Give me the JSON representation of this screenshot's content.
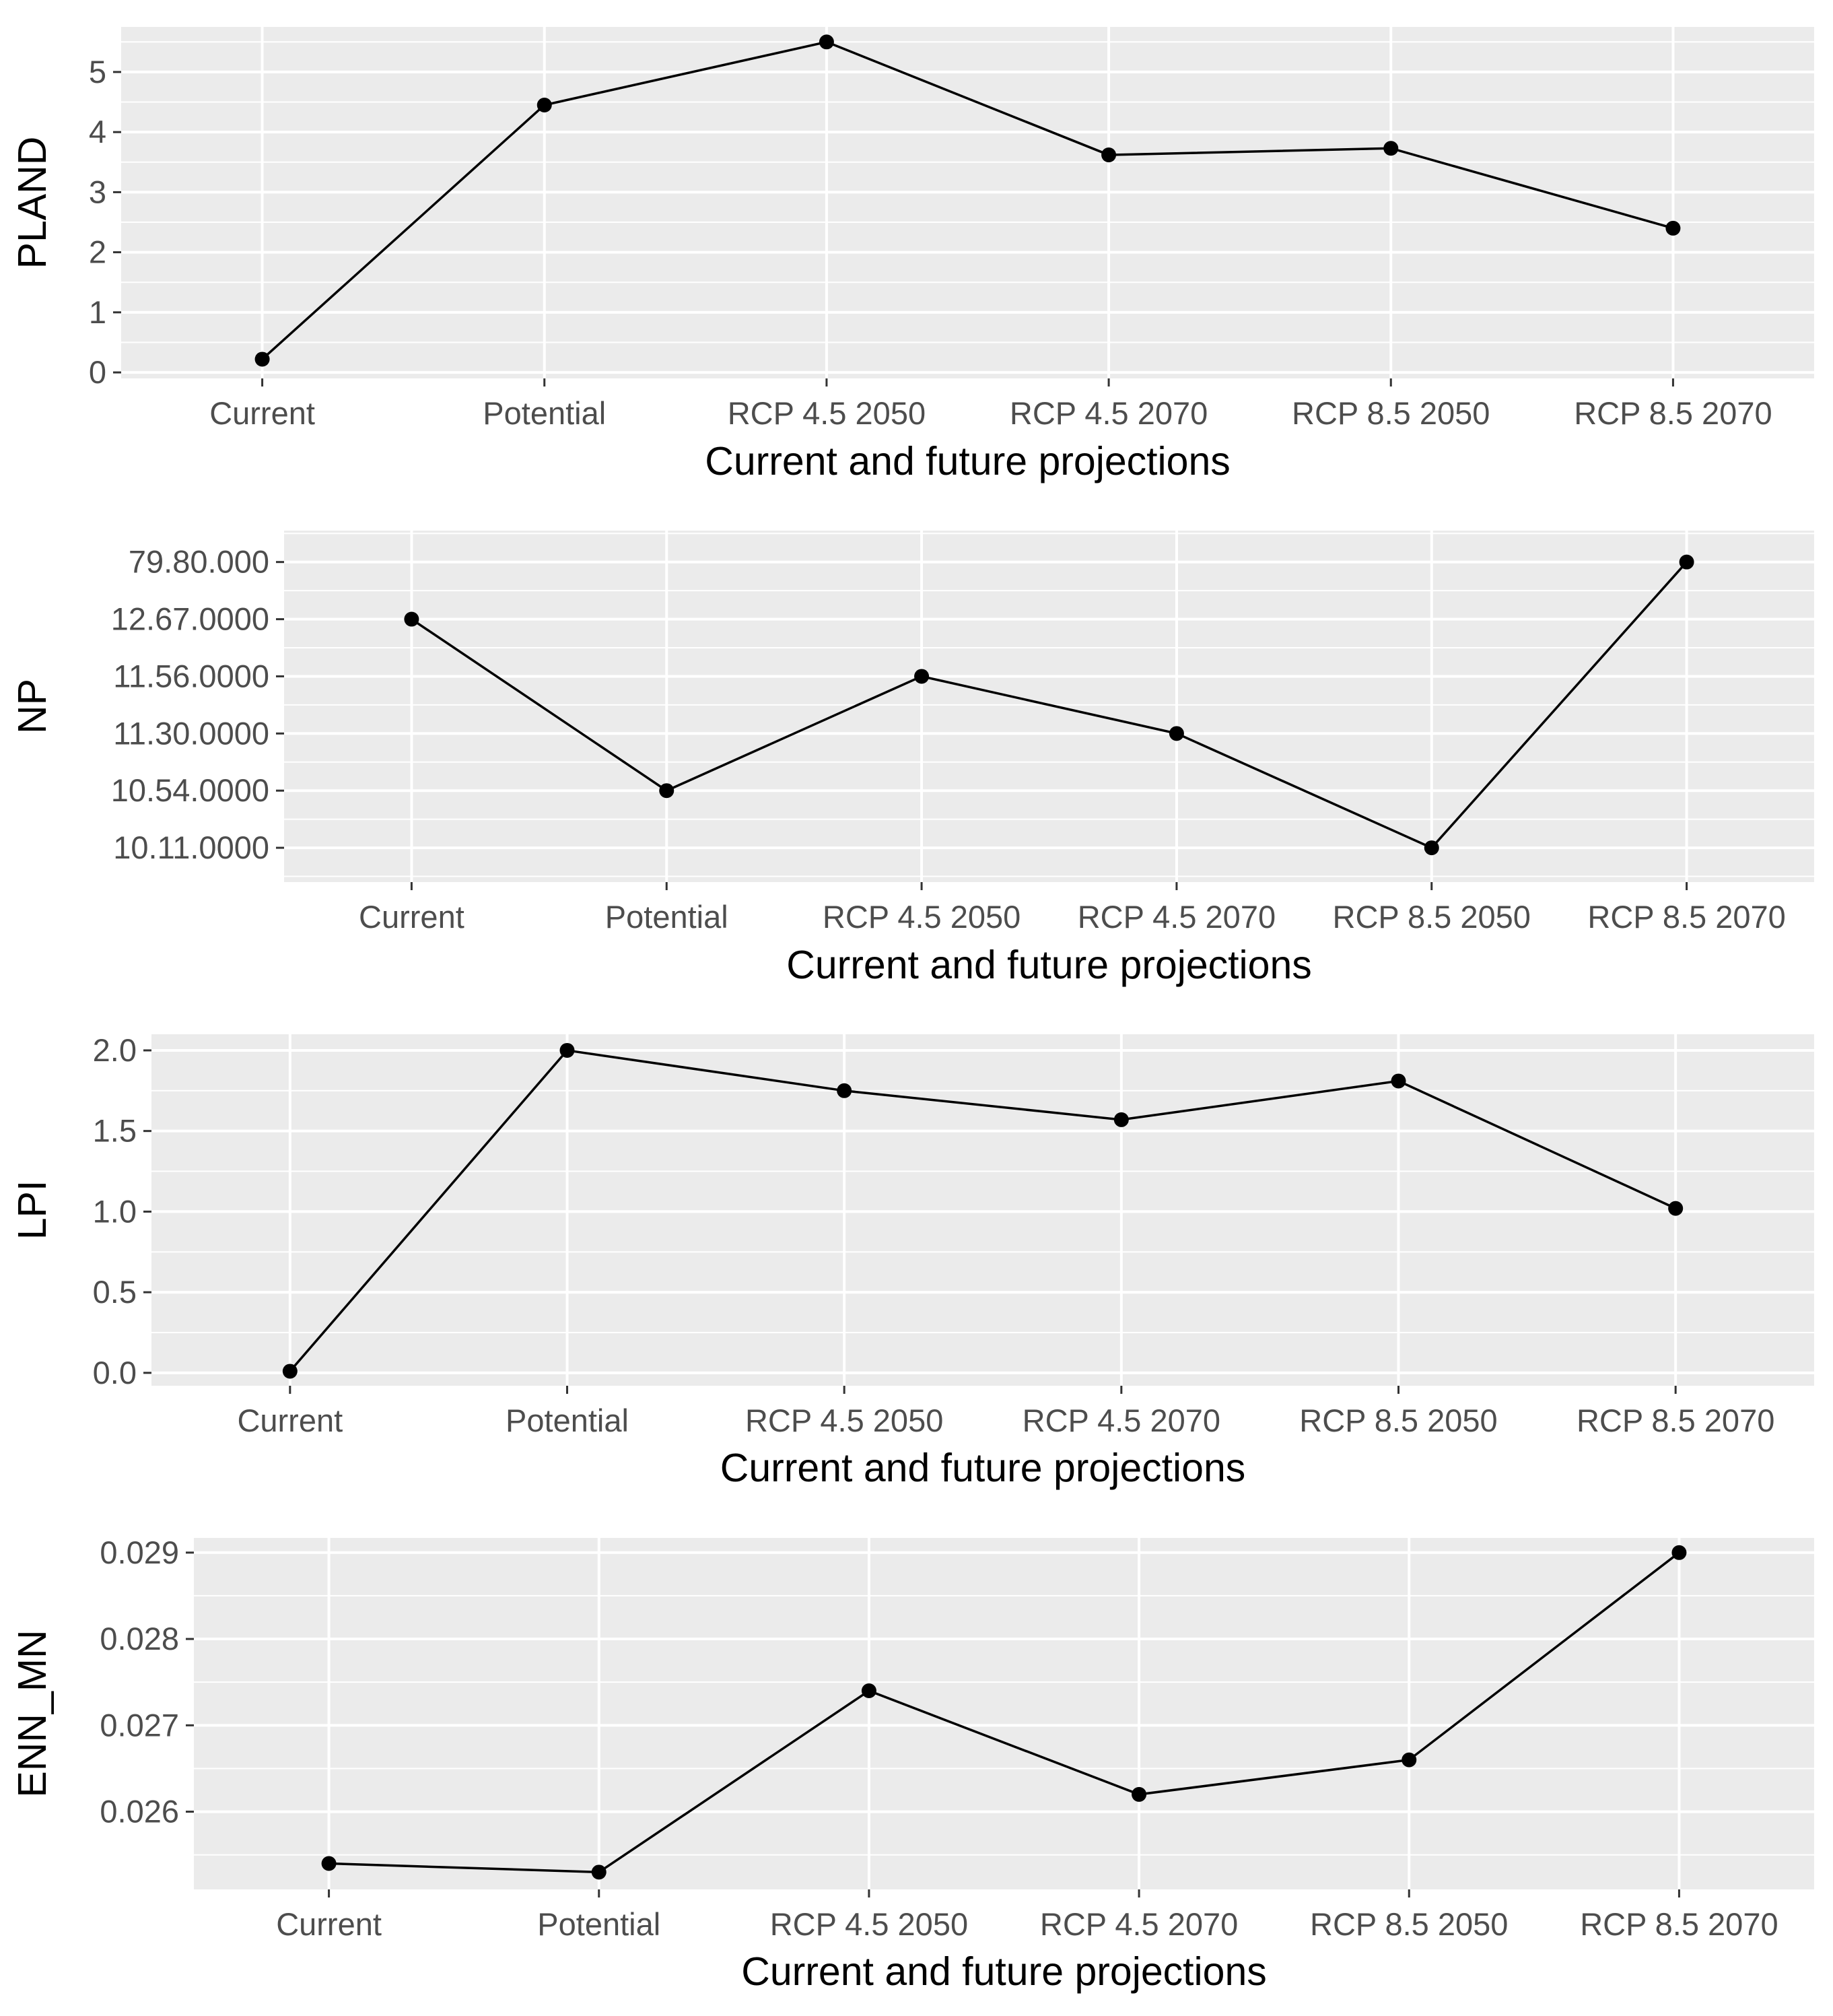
{
  "colors": {
    "panel_background": "#ebebeb",
    "grid": "#ffffff",
    "tick_text": "#4d4d4d",
    "series": "#000000"
  },
  "chart_data": [
    {
      "type": "line",
      "title": "",
      "xlabel": "Current and future projections",
      "ylabel": "PLAND",
      "categories": [
        "Current",
        "Potential",
        "RCP 4.5 2050",
        "RCP 4.5 2070",
        "RCP 8.5 2050",
        "RCP 8.5 2070"
      ],
      "values": [
        0.22,
        4.45,
        5.5,
        3.62,
        3.73,
        2.4
      ],
      "ylim": [
        -0.1,
        5.75
      ],
      "yticks": [
        0,
        1,
        2,
        3,
        4,
        5
      ],
      "ytick_labels": [
        "0",
        "1",
        "2",
        "3",
        "4",
        "5"
      ],
      "grid": true,
      "legend": "none"
    },
    {
      "type": "line",
      "title": "",
      "xlabel": "Current and future projections",
      "ylabel": "NP",
      "categories": [
        "Current",
        "Potential",
        "RCP 4.5 2050",
        "RCP 4.5 2070",
        "RCP 8.5 2050",
        "RCP 8.5 2070"
      ],
      "values": [
        5,
        2,
        4,
        3,
        1,
        6
      ],
      "ylim": [
        0.4,
        6.55
      ],
      "yticks": [
        1,
        2,
        3,
        4,
        5,
        6
      ],
      "ytick_labels": [
        "10.11.0000",
        "10.54.0000",
        "11.30.0000",
        "11.56.0000",
        "12.67.0000",
        "79.80.000"
      ],
      "grid": true,
      "legend": "none"
    },
    {
      "type": "line",
      "title": "",
      "xlabel": "Current and future projections",
      "ylabel": "LPI",
      "categories": [
        "Current",
        "Potential",
        "RCP 4.5 2050",
        "RCP 4.5 2070",
        "RCP 8.5 2050",
        "RCP 8.5 2070"
      ],
      "values": [
        0.01,
        2.0,
        1.75,
        1.57,
        1.81,
        1.02
      ],
      "ylim": [
        -0.08,
        2.1
      ],
      "yticks": [
        0.0,
        0.5,
        1.0,
        1.5,
        2.0
      ],
      "ytick_labels": [
        "0.0",
        "0.5",
        "1.0",
        "1.5",
        "2.0"
      ],
      "grid": true,
      "legend": "none"
    },
    {
      "type": "line",
      "title": "",
      "xlabel": "Current and future projections",
      "ylabel": "ENN_MN",
      "categories": [
        "Current",
        "Potential",
        "RCP 4.5 2050",
        "RCP 4.5 2070",
        "RCP 8.5 2050",
        "RCP 8.5 2070"
      ],
      "values": [
        0.0254,
        0.0253,
        0.0274,
        0.0262,
        0.0266,
        0.029
      ],
      "ylim": [
        0.0251,
        0.02917
      ],
      "yticks": [
        0.026,
        0.027,
        0.028,
        0.029
      ],
      "ytick_labels": [
        "0.026",
        "0.027",
        "0.028",
        "0.029"
      ],
      "grid": true,
      "legend": "none"
    }
  ]
}
